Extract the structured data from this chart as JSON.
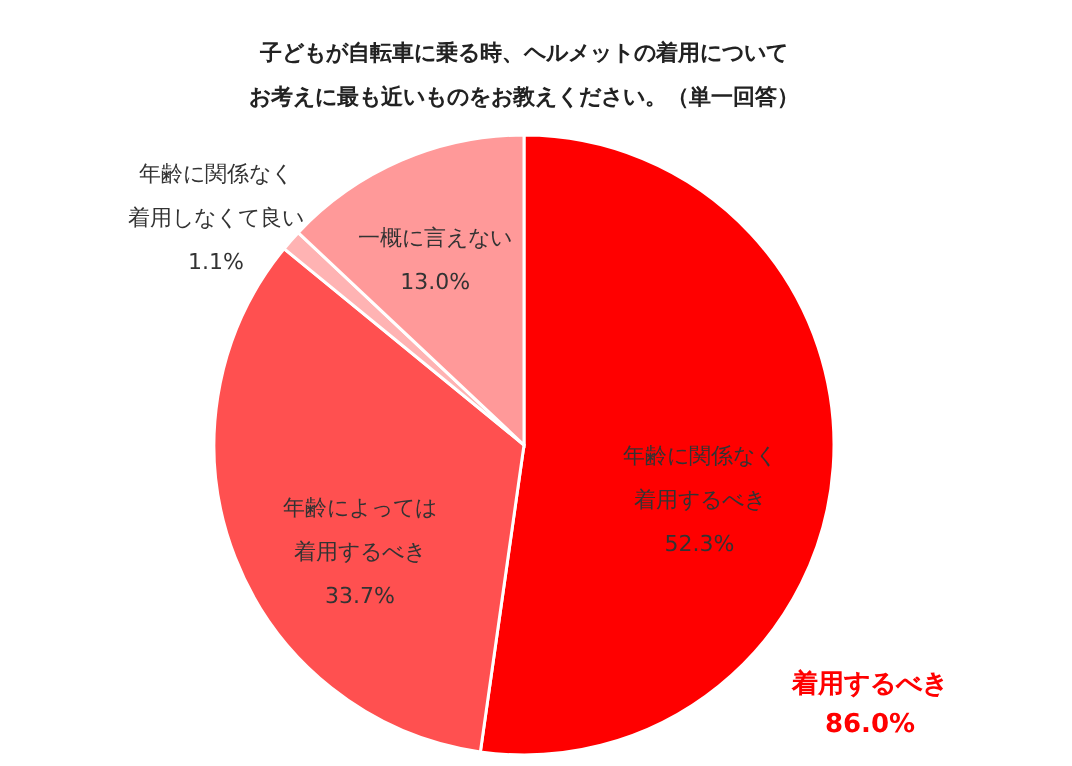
{
  "chart_data": {
    "type": "pie",
    "title": "子どもが自転車に乗る時、ヘルメットの着用についてお考えに最も近いものをお教えください。（単一回答）",
    "categories": [
      "年齢に関係なく着用するべき",
      "年齢によっては着用するべき",
      "年齢に関係なく着用しなくて良い",
      "一概に言えない"
    ],
    "values": [
      52.3,
      33.7,
      1.1,
      13.0
    ],
    "colors": [
      "#ff0000",
      "#ff5050",
      "#ffb3b3",
      "#ff9999"
    ],
    "value_labels": [
      "52.3%",
      "33.7%",
      "1.1%",
      "13.0%"
    ],
    "annotations": [
      "着用するべき\n86.0%"
    ]
  }
}
